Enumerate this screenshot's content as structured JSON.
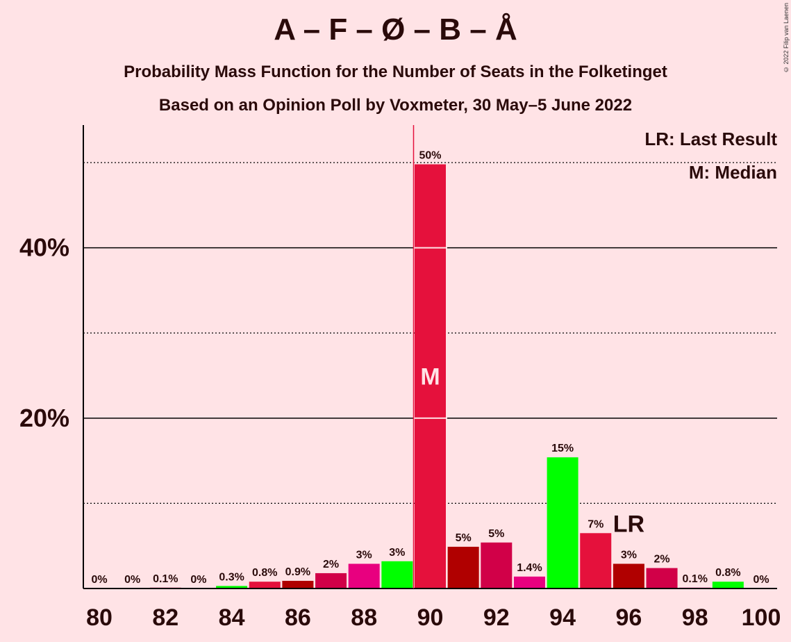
{
  "chart_data": {
    "type": "bar",
    "title": "A – F – Ø – B – Å",
    "subtitle": "Probability Mass Function for the Number of Seats in the Folketinget",
    "subtitle2": "Based on an Opinion Poll by Voxmeter, 30 May–5 June 2022",
    "copyright": "© 2022 Filip van Laenen",
    "x": [
      80,
      81,
      82,
      83,
      84,
      85,
      86,
      87,
      88,
      89,
      90,
      91,
      92,
      93,
      94,
      95,
      96,
      97,
      98,
      99,
      100
    ],
    "values": [
      0,
      0,
      0.1,
      0,
      0.3,
      0.8,
      0.9,
      1.8,
      2.9,
      3.2,
      49.8,
      4.9,
      5.4,
      1.4,
      15.4,
      6.5,
      2.9,
      2.4,
      0.1,
      0.8,
      0
    ],
    "labels": [
      "0%",
      "0%",
      "0.1%",
      "0%",
      "0.3%",
      "0.8%",
      "0.9%",
      "2%",
      "3%",
      "3%",
      "50%",
      "5%",
      "5%",
      "1.4%",
      "15%",
      "7%",
      "3%",
      "2%",
      "0.1%",
      "0.8%",
      "0%"
    ],
    "colors": [
      "#00E600",
      "#E5113C",
      "#D10048",
      "#B00000",
      "#00FF00",
      "#E5113C",
      "#B00000",
      "#D10048",
      "#E8007F",
      "#00FF00",
      "#E5113C",
      "#B00000",
      "#D10048",
      "#E8007F",
      "#00FF00",
      "#E5113C",
      "#B00000",
      "#D10048",
      "#E8007F",
      "#00FF00",
      "#E5113C"
    ],
    "x_ticks": [
      80,
      82,
      84,
      86,
      88,
      90,
      92,
      94,
      96,
      98,
      100
    ],
    "y_ticks": [
      {
        "value": 20,
        "label": "20%"
      },
      {
        "value": 40,
        "label": "40%"
      }
    ],
    "y_minor_gridlines": [
      10,
      30,
      50
    ],
    "ylim": [
      0,
      54
    ],
    "median": {
      "x": 90,
      "marker": "M"
    },
    "last_result": {
      "x": 96,
      "marker": "LR"
    },
    "legend": [
      "LR: Last Result",
      "M: Median"
    ],
    "legend_position": "top-right",
    "colors_meta": {
      "background": "#FFE3E6",
      "axis": "#2a0a0a",
      "median_line": "#E5113C"
    }
  }
}
